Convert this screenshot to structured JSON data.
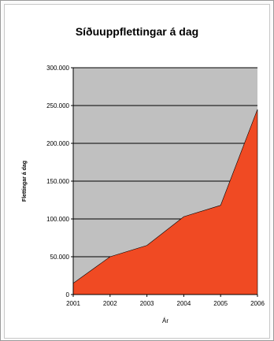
{
  "chart_data": {
    "type": "area",
    "title": "Síðuuppflettingar á dag",
    "xlabel": "Ár",
    "ylabel": "Flettingar á dag",
    "categories": [
      "2001",
      "2002",
      "2003",
      "2004",
      "2005",
      "2006"
    ],
    "series": [
      {
        "values": [
          15000,
          50000,
          65000,
          103000,
          118000,
          245000
        ]
      }
    ],
    "ylim": [
      0,
      300000
    ],
    "yticks": [
      0,
      50000,
      100000,
      150000,
      200000,
      250000,
      300000
    ],
    "ytick_labels": [
      "0",
      "50.000",
      "100.000",
      "150.000",
      "200.000",
      "250.000",
      "300.000"
    ],
    "grid": true,
    "colors": {
      "plot_background": "#c0c0c0",
      "area_fill": "#f04a23",
      "gridline": "#000000"
    }
  }
}
